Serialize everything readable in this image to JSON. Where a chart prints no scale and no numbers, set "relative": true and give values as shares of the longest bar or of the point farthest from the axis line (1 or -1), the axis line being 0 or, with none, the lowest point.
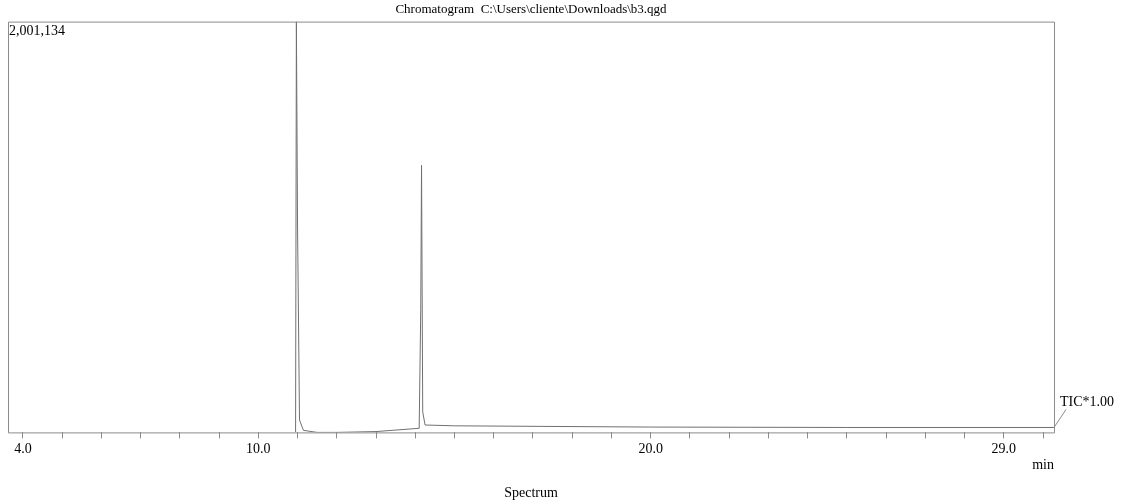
{
  "chart_data": {
    "type": "line",
    "title": "Chromatogram  C:\\Users\\cliente\\Downloads\\b3.qgd",
    "xlabel": "min",
    "relative": true,
    "x": [
      10.95,
      10.97,
      11.0,
      11.05,
      11.15,
      11.5,
      12.0,
      13.0,
      14.1,
      14.14,
      14.16,
      14.19,
      14.25,
      15.0,
      20.0,
      25.0,
      30.28
    ],
    "series": [
      {
        "color": "#707070",
        "values": [
          0,
          1,
          0.5,
          0.03,
          0.005,
          0,
          0,
          0.002,
          0.01,
          0.3,
          0.65,
          0.05,
          0.018,
          0.016,
          0.013,
          0.012,
          0.012
        ]
      }
    ],
    "xlim": [
      3.62,
      30.28
    ],
    "xticks": [
      {
        "value": 4,
        "label": "4.0"
      },
      {
        "value": 5,
        "label": null
      },
      {
        "value": 6,
        "label": null
      },
      {
        "value": 7,
        "label": null
      },
      {
        "value": 8,
        "label": null
      },
      {
        "value": 9,
        "label": null
      },
      {
        "value": 10,
        "label": "10.0"
      },
      {
        "value": 11,
        "label": null
      },
      {
        "value": 12,
        "label": null
      },
      {
        "value": 13,
        "label": null
      },
      {
        "value": 14,
        "label": null
      },
      {
        "value": 15,
        "label": null
      },
      {
        "value": 16,
        "label": null
      },
      {
        "value": 17,
        "label": null
      },
      {
        "value": 18,
        "label": null
      },
      {
        "value": 19,
        "label": null
      },
      {
        "value": 20,
        "label": "20.0"
      },
      {
        "value": 21,
        "label": null
      },
      {
        "value": 22,
        "label": null
      },
      {
        "value": 23,
        "label": null
      },
      {
        "value": 24,
        "label": null
      },
      {
        "value": 25,
        "label": null
      },
      {
        "value": 26,
        "label": null
      },
      {
        "value": 27,
        "label": null
      },
      {
        "value": 28,
        "label": null
      },
      {
        "value": 29,
        "label": "29.0"
      },
      {
        "value": 30,
        "label": null
      }
    ],
    "annotations": [
      "2,001,134",
      {
        "text": "TIC*1.00",
        "x": 30.28,
        "y": 0.012
      },
      "Spectrum"
    ],
    "grid": false,
    "legend": false,
    "marker": "none",
    "line_style": "solid"
  }
}
